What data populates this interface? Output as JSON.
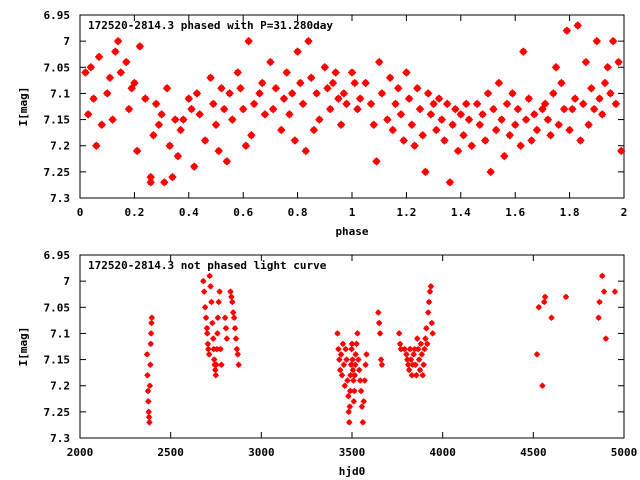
{
  "chart_data": [
    {
      "type": "scatter",
      "title": "172520-2814.3 phased with P=31.280day",
      "xlabel": "phase",
      "ylabel": "I[mag]",
      "xlim": [
        0,
        2
      ],
      "ylim": [
        6.95,
        7.3
      ],
      "y_inverted": true,
      "x_ticks": [
        0,
        0.2,
        0.4,
        0.6,
        0.8,
        1,
        1.2,
        1.4,
        1.6,
        1.8,
        2
      ],
      "x_tick_labels": [
        "0",
        "0.2",
        "0.4",
        "0.6",
        "0.8",
        "1",
        "1.2",
        "1.4",
        "1.6",
        "1.8",
        "2"
      ],
      "y_ticks": [
        6.95,
        7.0,
        7.05,
        7.1,
        7.15,
        7.2,
        7.25,
        7.3
      ],
      "y_tick_labels": [
        "6.95",
        "7",
        "7.05",
        "7.1",
        "7.15",
        "7.2",
        "7.25",
        "7.3"
      ],
      "marker_color": "#ff0000",
      "points": [
        [
          0.02,
          7.06
        ],
        [
          0.03,
          7.14
        ],
        [
          0.04,
          7.05
        ],
        [
          0.05,
          7.11
        ],
        [
          0.06,
          7.2
        ],
        [
          0.07,
          7.03
        ],
        [
          0.08,
          7.16
        ],
        [
          0.1,
          7.1
        ],
        [
          0.11,
          7.07
        ],
        [
          0.12,
          7.15
        ],
        [
          0.13,
          7.02
        ],
        [
          0.14,
          7.0
        ],
        [
          0.15,
          7.06
        ],
        [
          0.17,
          7.04
        ],
        [
          0.18,
          7.13
        ],
        [
          0.19,
          7.09
        ],
        [
          0.2,
          7.08
        ],
        [
          0.21,
          7.21
        ],
        [
          0.22,
          7.01
        ],
        [
          0.24,
          7.11
        ],
        [
          0.26,
          7.26
        ],
        [
          0.26,
          7.27
        ],
        [
          0.27,
          7.18
        ],
        [
          0.28,
          7.12
        ],
        [
          0.29,
          7.16
        ],
        [
          0.3,
          7.14
        ],
        [
          0.31,
          7.27
        ],
        [
          0.32,
          7.09
        ],
        [
          0.33,
          7.2
        ],
        [
          0.34,
          7.26
        ],
        [
          0.35,
          7.15
        ],
        [
          0.36,
          7.22
        ],
        [
          0.37,
          7.17
        ],
        [
          0.38,
          7.15
        ],
        [
          0.4,
          7.11
        ],
        [
          0.41,
          7.13
        ],
        [
          0.42,
          7.24
        ],
        [
          0.43,
          7.1
        ],
        [
          0.44,
          7.14
        ],
        [
          0.46,
          7.19
        ],
        [
          0.48,
          7.07
        ],
        [
          0.49,
          7.12
        ],
        [
          0.5,
          7.16
        ],
        [
          0.51,
          7.21
        ],
        [
          0.52,
          7.09
        ],
        [
          0.53,
          7.13
        ],
        [
          0.54,
          7.23
        ],
        [
          0.55,
          7.1
        ],
        [
          0.56,
          7.15
        ],
        [
          0.58,
          7.06
        ],
        [
          0.59,
          7.09
        ],
        [
          0.6,
          7.13
        ],
        [
          0.61,
          7.2
        ],
        [
          0.62,
          7.0
        ],
        [
          0.63,
          7.18
        ],
        [
          0.64,
          7.12
        ],
        [
          0.66,
          7.1
        ],
        [
          0.67,
          7.08
        ],
        [
          0.68,
          7.14
        ],
        [
          0.7,
          7.04
        ],
        [
          0.71,
          7.13
        ],
        [
          0.72,
          7.09
        ],
        [
          0.74,
          7.17
        ],
        [
          0.75,
          7.11
        ],
        [
          0.76,
          7.06
        ],
        [
          0.77,
          7.14
        ],
        [
          0.78,
          7.1
        ],
        [
          0.79,
          7.19
        ],
        [
          0.8,
          7.02
        ],
        [
          0.81,
          7.08
        ],
        [
          0.82,
          7.12
        ],
        [
          0.83,
          7.21
        ],
        [
          0.84,
          7.0
        ],
        [
          0.85,
          7.07
        ],
        [
          0.86,
          7.17
        ],
        [
          0.87,
          7.1
        ],
        [
          0.88,
          7.15
        ],
        [
          0.9,
          7.05
        ],
        [
          0.91,
          7.09
        ],
        [
          0.92,
          7.13
        ],
        [
          0.93,
          7.08
        ],
        [
          0.94,
          7.06
        ],
        [
          0.95,
          7.11
        ],
        [
          0.96,
          7.16
        ],
        [
          0.97,
          7.1
        ],
        [
          0.98,
          7.12
        ],
        [
          1.0,
          7.06
        ],
        [
          1.01,
          7.08
        ],
        [
          1.02,
          7.13
        ],
        [
          1.03,
          7.11
        ],
        [
          1.05,
          7.08
        ],
        [
          1.07,
          7.12
        ],
        [
          1.08,
          7.16
        ],
        [
          1.09,
          7.23
        ],
        [
          1.1,
          7.04
        ],
        [
          1.11,
          7.1
        ],
        [
          1.13,
          7.15
        ],
        [
          1.14,
          7.07
        ],
        [
          1.15,
          7.17
        ],
        [
          1.16,
          7.12
        ],
        [
          1.17,
          7.09
        ],
        [
          1.18,
          7.14
        ],
        [
          1.19,
          7.19
        ],
        [
          1.2,
          7.06
        ],
        [
          1.21,
          7.11
        ],
        [
          1.22,
          7.16
        ],
        [
          1.23,
          7.2
        ],
        [
          1.24,
          7.09
        ],
        [
          1.25,
          7.13
        ],
        [
          1.26,
          7.18
        ],
        [
          1.27,
          7.25
        ],
        [
          1.28,
          7.1
        ],
        [
          1.29,
          7.14
        ],
        [
          1.3,
          7.12
        ],
        [
          1.31,
          7.17
        ],
        [
          1.32,
          7.11
        ],
        [
          1.33,
          7.15
        ],
        [
          1.34,
          7.19
        ],
        [
          1.35,
          7.12
        ],
        [
          1.36,
          7.27
        ],
        [
          1.37,
          7.16
        ],
        [
          1.38,
          7.13
        ],
        [
          1.39,
          7.21
        ],
        [
          1.4,
          7.14
        ],
        [
          1.41,
          7.18
        ],
        [
          1.42,
          7.12
        ],
        [
          1.43,
          7.15
        ],
        [
          1.44,
          7.2
        ],
        [
          1.46,
          7.12
        ],
        [
          1.47,
          7.16
        ],
        [
          1.48,
          7.14
        ],
        [
          1.49,
          7.19
        ],
        [
          1.5,
          7.1
        ],
        [
          1.51,
          7.25
        ],
        [
          1.52,
          7.13
        ],
        [
          1.53,
          7.17
        ],
        [
          1.54,
          7.08
        ],
        [
          1.55,
          7.15
        ],
        [
          1.56,
          7.22
        ],
        [
          1.57,
          7.12
        ],
        [
          1.58,
          7.18
        ],
        [
          1.59,
          7.1
        ],
        [
          1.6,
          7.16
        ],
        [
          1.61,
          7.13
        ],
        [
          1.62,
          7.2
        ],
        [
          1.63,
          7.02
        ],
        [
          1.64,
          7.15
        ],
        [
          1.65,
          7.11
        ],
        [
          1.66,
          7.19
        ],
        [
          1.67,
          7.14
        ],
        [
          1.68,
          7.17
        ],
        [
          1.7,
          7.13
        ],
        [
          1.71,
          7.12
        ],
        [
          1.72,
          7.15
        ],
        [
          1.73,
          7.18
        ],
        [
          1.74,
          7.1
        ],
        [
          1.75,
          7.05
        ],
        [
          1.76,
          7.16
        ],
        [
          1.77,
          7.08
        ],
        [
          1.78,
          7.13
        ],
        [
          1.79,
          6.98
        ],
        [
          1.8,
          7.17
        ],
        [
          1.81,
          7.13
        ],
        [
          1.82,
          7.11
        ],
        [
          1.83,
          6.97
        ],
        [
          1.84,
          7.19
        ],
        [
          1.85,
          7.12
        ],
        [
          1.86,
          7.04
        ],
        [
          1.87,
          7.16
        ],
        [
          1.88,
          7.09
        ],
        [
          1.89,
          7.13
        ],
        [
          1.9,
          7.0
        ],
        [
          1.91,
          7.11
        ],
        [
          1.92,
          7.14
        ],
        [
          1.93,
          7.08
        ],
        [
          1.94,
          7.05
        ],
        [
          1.95,
          7.1
        ],
        [
          1.96,
          7.0
        ],
        [
          1.97,
          7.12
        ],
        [
          1.98,
          7.04
        ],
        [
          1.99,
          7.21
        ]
      ]
    },
    {
      "type": "scatter",
      "title": "172520-2814.3 not phased light curve",
      "xlabel": "hjd0",
      "ylabel": "I[mag]",
      "xlim": [
        2000,
        5000
      ],
      "ylim": [
        6.95,
        7.3
      ],
      "y_inverted": true,
      "x_ticks": [
        2000,
        2500,
        3000,
        3500,
        4000,
        4500,
        5000
      ],
      "x_tick_labels": [
        "2000",
        "2500",
        "3000",
        "3500",
        "4000",
        "4500",
        "5000"
      ],
      "y_ticks": [
        6.95,
        7.0,
        7.05,
        7.1,
        7.15,
        7.2,
        7.25,
        7.3
      ],
      "y_tick_labels": [
        "6.95",
        "7",
        "7.05",
        "7.1",
        "7.15",
        "7.2",
        "7.25",
        "7.3"
      ],
      "marker_color": "#ff0000",
      "points": [
        [
          2370,
          7.14
        ],
        [
          2372,
          7.18
        ],
        [
          2375,
          7.21
        ],
        [
          2377,
          7.23
        ],
        [
          2379,
          7.25
        ],
        [
          2381,
          7.26
        ],
        [
          2383,
          7.27
        ],
        [
          2385,
          7.2
        ],
        [
          2388,
          7.16
        ],
        [
          2390,
          7.12
        ],
        [
          2392,
          7.1
        ],
        [
          2394,
          7.08
        ],
        [
          2396,
          7.07
        ],
        [
          2680,
          7.0
        ],
        [
          2685,
          7.02
        ],
        [
          2690,
          7.05
        ],
        [
          2695,
          7.07
        ],
        [
          2700,
          7.09
        ],
        [
          2702,
          7.1
        ],
        [
          2705,
          7.12
        ],
        [
          2708,
          7.13
        ],
        [
          2712,
          7.14
        ],
        [
          2715,
          6.99
        ],
        [
          2720,
          7.01
        ],
        [
          2725,
          7.04
        ],
        [
          2730,
          7.08
        ],
        [
          2735,
          7.11
        ],
        [
          2738,
          7.13
        ],
        [
          2740,
          7.15
        ],
        [
          2743,
          7.16
        ],
        [
          2746,
          7.17
        ],
        [
          2749,
          7.18
        ],
        [
          2752,
          7.16
        ],
        [
          2755,
          7.13
        ],
        [
          2758,
          7.1
        ],
        [
          2760,
          7.07
        ],
        [
          2765,
          7.04
        ],
        [
          2770,
          7.02
        ],
        [
          2775,
          7.13
        ],
        [
          2780,
          7.16
        ],
        [
          2800,
          7.07
        ],
        [
          2805,
          7.09
        ],
        [
          2810,
          7.11
        ],
        [
          2830,
          7.02
        ],
        [
          2835,
          7.03
        ],
        [
          2840,
          7.04
        ],
        [
          2845,
          7.06
        ],
        [
          2850,
          7.07
        ],
        [
          2855,
          7.09
        ],
        [
          2860,
          7.11
        ],
        [
          2865,
          7.13
        ],
        [
          2870,
          7.14
        ],
        [
          2875,
          7.16
        ],
        [
          3420,
          7.1
        ],
        [
          3425,
          7.13
        ],
        [
          3430,
          7.15
        ],
        [
          3435,
          7.17
        ],
        [
          3440,
          7.14
        ],
        [
          3445,
          7.18
        ],
        [
          3450,
          7.12
        ],
        [
          3455,
          7.16
        ],
        [
          3460,
          7.2
        ],
        [
          3465,
          7.13
        ],
        [
          3470,
          7.15
        ],
        [
          3475,
          7.19
        ],
        [
          3480,
          7.22
        ],
        [
          3482,
          7.25
        ],
        [
          3485,
          7.27
        ],
        [
          3488,
          7.24
        ],
        [
          3490,
          7.21
        ],
        [
          3492,
          7.18
        ],
        [
          3495,
          7.16
        ],
        [
          3498,
          7.13
        ],
        [
          3500,
          7.12
        ],
        [
          3503,
          7.15
        ],
        [
          3505,
          7.17
        ],
        [
          3508,
          7.19
        ],
        [
          3510,
          7.23
        ],
        [
          3513,
          7.21
        ],
        [
          3515,
          7.18
        ],
        [
          3518,
          7.16
        ],
        [
          3520,
          7.14
        ],
        [
          3525,
          7.12
        ],
        [
          3530,
          7.1
        ],
        [
          3535,
          7.15
        ],
        [
          3540,
          7.17
        ],
        [
          3545,
          7.19
        ],
        [
          3550,
          7.21
        ],
        [
          3555,
          7.24
        ],
        [
          3560,
          7.27
        ],
        [
          3565,
          7.23
        ],
        [
          3570,
          7.19
        ],
        [
          3575,
          7.16
        ],
        [
          3580,
          7.14
        ],
        [
          3645,
          7.06
        ],
        [
          3650,
          7.08
        ],
        [
          3655,
          7.1
        ],
        [
          3660,
          7.15
        ],
        [
          3665,
          7.16
        ],
        [
          3760,
          7.1
        ],
        [
          3765,
          7.12
        ],
        [
          3770,
          7.13
        ],
        [
          3790,
          7.13
        ],
        [
          3800,
          7.14
        ],
        [
          3805,
          7.15
        ],
        [
          3810,
          7.16
        ],
        [
          3815,
          7.17
        ],
        [
          3820,
          7.13
        ],
        [
          3825,
          7.15
        ],
        [
          3830,
          7.18
        ],
        [
          3835,
          7.16
        ],
        [
          3840,
          7.14
        ],
        [
          3845,
          7.13
        ],
        [
          3850,
          7.16
        ],
        [
          3855,
          7.18
        ],
        [
          3860,
          7.11
        ],
        [
          3865,
          7.13
        ],
        [
          3870,
          7.15
        ],
        [
          3875,
          7.17
        ],
        [
          3880,
          7.12
        ],
        [
          3885,
          7.14
        ],
        [
          3890,
          7.18
        ],
        [
          3895,
          7.16
        ],
        [
          3900,
          7.13
        ],
        [
          3905,
          7.11
        ],
        [
          3910,
          7.09
        ],
        [
          3915,
          7.12
        ],
        [
          3920,
          7.06
        ],
        [
          3925,
          7.04
        ],
        [
          3930,
          7.02
        ],
        [
          3935,
          7.01
        ],
        [
          3940,
          7.08
        ],
        [
          3945,
          7.1
        ],
        [
          4520,
          7.14
        ],
        [
          4530,
          7.05
        ],
        [
          4550,
          7.2
        ],
        [
          4560,
          7.04
        ],
        [
          4565,
          7.03
        ],
        [
          4600,
          7.07
        ],
        [
          4680,
          7.03
        ],
        [
          4860,
          7.07
        ],
        [
          4865,
          7.04
        ],
        [
          4880,
          6.99
        ],
        [
          4890,
          7.02
        ],
        [
          4900,
          7.11
        ],
        [
          4950,
          7.02
        ]
      ]
    }
  ]
}
